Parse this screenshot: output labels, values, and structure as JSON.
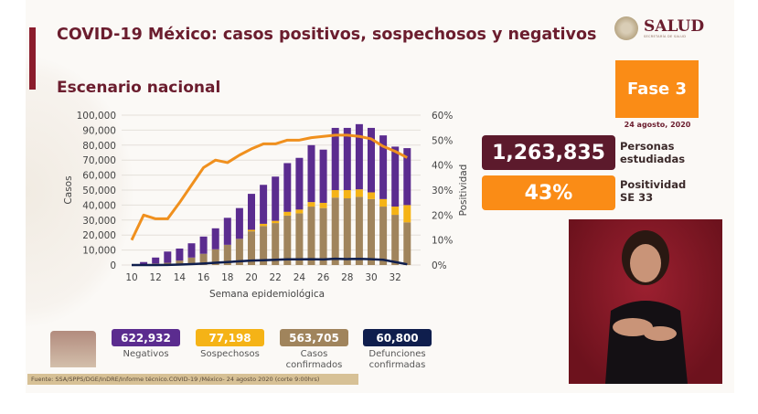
{
  "header": {
    "title": "COVID-19 México: casos positivos, sospechosos y negativos",
    "subtitle": "Escenario nacional",
    "logo_text": "SALUD",
    "logo_subtext": "SECRETARÍA DE SALUD"
  },
  "fase": {
    "label": "Fase 3",
    "date": "24 agosto, 2020"
  },
  "kpis": [
    {
      "value": "1,263,835",
      "label": "Personas estudiadas",
      "color": "#5c1a2c"
    },
    {
      "value": "43%",
      "label": "Positividad SE 33",
      "color": "#fa8c16"
    }
  ],
  "legend": [
    {
      "value": "622,932",
      "label": "Negativos",
      "color": "#5b2c8f"
    },
    {
      "value": "77,198",
      "label": "Sospechosos",
      "color": "#f5b316"
    },
    {
      "value": "563,705",
      "label": "Casos confirmados",
      "color": "#a0845c"
    },
    {
      "value": "60,800",
      "label": "Defunciones confirmadas",
      "color": "#0f1e4d"
    }
  ],
  "footer": "Fuente: SSA/SPPS/DGE/InDRE/Informe técnico.COVID-19 /México- 24 agosto 2020 (corte 9:00hrs)",
  "chart_data": {
    "type": "bar",
    "xlabel": "Semana epidemiológica",
    "ylabel": "Casos",
    "y2label": "Positividad",
    "ylim": [
      0,
      100000
    ],
    "y2lim": [
      0,
      60
    ],
    "yticks": [
      "0",
      "10,000",
      "20,000",
      "30,000",
      "40,000",
      "50,000",
      "60,000",
      "70,000",
      "80,000",
      "90,000",
      "100,000"
    ],
    "y2ticks": [
      "0%",
      "10%",
      "20%",
      "30%",
      "40%",
      "50%",
      "60%"
    ],
    "xticks": [
      "10",
      "12",
      "14",
      "16",
      "18",
      "20",
      "22",
      "24",
      "26",
      "28",
      "30",
      "32"
    ],
    "x": [
      10,
      11,
      12,
      13,
      14,
      15,
      16,
      17,
      18,
      19,
      20,
      21,
      22,
      23,
      24,
      25,
      26,
      27,
      28,
      29,
      30,
      31,
      32,
      33
    ],
    "stacked": true,
    "series": [
      {
        "name": "Casos confirmados",
        "color": "#a0845c",
        "values": [
          0,
          500,
          1000,
          1500,
          3000,
          5000,
          7500,
          10500,
          13500,
          17500,
          22500,
          26000,
          28000,
          33000,
          34500,
          39000,
          38000,
          45000,
          44500,
          45500,
          44000,
          39000,
          33500,
          28500
        ]
      },
      {
        "name": "Sospechosos",
        "color": "#f5b316",
        "values": [
          0,
          0,
          0,
          0,
          0,
          0,
          0,
          0,
          0,
          0,
          1000,
          1500,
          1500,
          2500,
          2500,
          3000,
          3500,
          5000,
          5500,
          5000,
          4500,
          5000,
          5500,
          11500
        ]
      },
      {
        "name": "Negativos",
        "color": "#5b2c8f",
        "values": [
          0,
          1500,
          4000,
          7500,
          8000,
          9500,
          11500,
          14000,
          18000,
          20500,
          24000,
          26000,
          29500,
          32500,
          34500,
          38000,
          35500,
          41500,
          41500,
          43500,
          43000,
          42500,
          40000,
          38000
        ]
      }
    ],
    "lines": [
      {
        "name": "Defunciones confirmadas",
        "color": "#0f1e4d",
        "axis": "left",
        "values": [
          0,
          0,
          0,
          100,
          300,
          600,
          1000,
          1500,
          2000,
          2500,
          3000,
          3200,
          3500,
          3800,
          3800,
          3900,
          3700,
          4200,
          4000,
          4100,
          3900,
          3500,
          2000,
          500
        ]
      },
      {
        "name": "Positividad",
        "color": "#f0901e",
        "axis": "right",
        "values": [
          10,
          20,
          18.5,
          18.5,
          25,
          32,
          39,
          42,
          41,
          44,
          46.5,
          48.5,
          48.5,
          50,
          50,
          51,
          51.5,
          52,
          52,
          51.5,
          50.5,
          47.5,
          45.5,
          43
        ]
      }
    ],
    "grid": true
  }
}
